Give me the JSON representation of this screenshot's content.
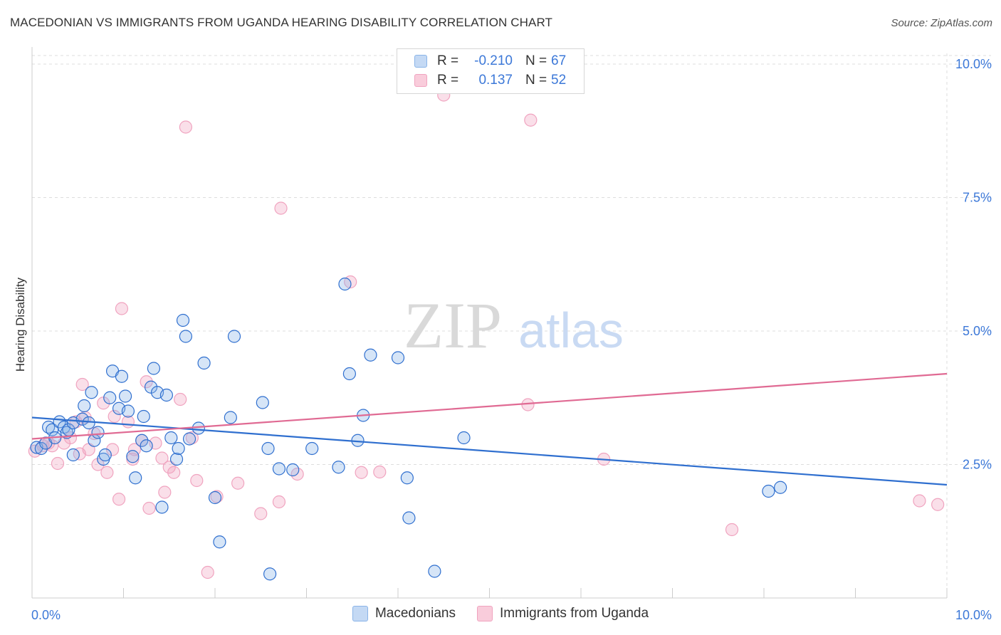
{
  "title": "MACEDONIAN VS IMMIGRANTS FROM UGANDA HEARING DISABILITY CORRELATION CHART",
  "source": "Source: ZipAtlas.com",
  "watermark": {
    "zip": "ZIP",
    "atlas": "atlas"
  },
  "legend": {
    "rows": [
      {
        "r_label": "R =",
        "r_value": "-0.210",
        "n_label": "N =",
        "n_value": "67"
      },
      {
        "r_label": "R =",
        "r_value": "0.137",
        "n_label": "N =",
        "n_value": "52"
      }
    ]
  },
  "bottom_legend": {
    "macedonians": "Macedonians",
    "uganda": "Immigrants from Uganda"
  },
  "chart_data": {
    "type": "scatter",
    "title": "MACEDONIAN VS IMMIGRANTS FROM UGANDA HEARING DISABILITY CORRELATION CHART",
    "xlabel": "",
    "ylabel": "Hearing Disability",
    "xlim": [
      0,
      10
    ],
    "ylim": [
      0,
      10.2
    ],
    "x_tick_labels": [
      "0.0%",
      "10.0%"
    ],
    "y_ticks": [
      2.5,
      5.0,
      7.5,
      10.0
    ],
    "y_tick_labels": [
      "2.5%",
      "5.0%",
      "7.5%",
      "10.0%"
    ],
    "grid": true,
    "legend_position": "top-center",
    "colors": {
      "macedonians": "#8ab4e8",
      "macedonians_line": "#2f6fcf",
      "uganda": "#f0a3bf",
      "uganda_line": "#e06a93",
      "accent_text": "#3c78d8"
    },
    "series": [
      {
        "name": "Macedonians",
        "r": -0.21,
        "n": 67,
        "trend": {
          "x": [
            0,
            10
          ],
          "y": [
            3.38,
            2.12
          ]
        },
        "points": [
          [
            0.05,
            2.82
          ],
          [
            0.1,
            2.8
          ],
          [
            0.15,
            2.9
          ],
          [
            0.18,
            3.2
          ],
          [
            0.22,
            3.15
          ],
          [
            0.25,
            3.0
          ],
          [
            0.3,
            3.3
          ],
          [
            0.35,
            3.2
          ],
          [
            0.38,
            3.1
          ],
          [
            0.4,
            3.15
          ],
          [
            0.45,
            3.28
          ],
          [
            0.45,
            2.68
          ],
          [
            0.55,
            3.35
          ],
          [
            0.57,
            3.6
          ],
          [
            0.62,
            3.28
          ],
          [
            0.65,
            3.85
          ],
          [
            0.68,
            2.95
          ],
          [
            0.72,
            3.1
          ],
          [
            0.78,
            2.6
          ],
          [
            0.8,
            2.68
          ],
          [
            0.85,
            3.75
          ],
          [
            0.88,
            4.25
          ],
          [
            0.95,
            3.55
          ],
          [
            0.98,
            4.15
          ],
          [
            1.02,
            3.78
          ],
          [
            1.05,
            3.5
          ],
          [
            1.1,
            2.65
          ],
          [
            1.13,
            2.25
          ],
          [
            1.2,
            2.95
          ],
          [
            1.22,
            3.4
          ],
          [
            1.25,
            2.85
          ],
          [
            1.3,
            3.95
          ],
          [
            1.33,
            4.3
          ],
          [
            1.37,
            3.85
          ],
          [
            1.42,
            1.7
          ],
          [
            1.47,
            3.8
          ],
          [
            1.52,
            3.0
          ],
          [
            1.58,
            2.6
          ],
          [
            1.6,
            2.8
          ],
          [
            1.65,
            5.2
          ],
          [
            1.68,
            4.9
          ],
          [
            1.72,
            2.98
          ],
          [
            1.82,
            3.18
          ],
          [
            1.88,
            4.4
          ],
          [
            2.0,
            1.88
          ],
          [
            2.05,
            1.05
          ],
          [
            2.17,
            3.38
          ],
          [
            2.21,
            4.9
          ],
          [
            2.52,
            3.66
          ],
          [
            2.58,
            2.8
          ],
          [
            2.6,
            0.45
          ],
          [
            2.7,
            2.42
          ],
          [
            2.85,
            2.4
          ],
          [
            3.06,
            2.8
          ],
          [
            3.35,
            2.45
          ],
          [
            3.42,
            5.88
          ],
          [
            3.47,
            4.2
          ],
          [
            3.62,
            3.42
          ],
          [
            3.56,
            2.95
          ],
          [
            3.7,
            4.55
          ],
          [
            4.0,
            4.5
          ],
          [
            4.1,
            2.25
          ],
          [
            4.12,
            1.5
          ],
          [
            4.4,
            0.5
          ],
          [
            4.72,
            3.0
          ],
          [
            8.05,
            2.0
          ],
          [
            8.18,
            2.07
          ]
        ]
      },
      {
        "name": "Immigrants from Uganda",
        "r": 0.137,
        "n": 52,
        "trend": {
          "x": [
            0,
            10
          ],
          "y": [
            2.98,
            4.2
          ]
        },
        "points": [
          [
            0.03,
            2.75
          ],
          [
            0.12,
            2.85
          ],
          [
            0.18,
            2.9
          ],
          [
            0.22,
            2.85
          ],
          [
            0.28,
            2.52
          ],
          [
            0.35,
            2.9
          ],
          [
            0.42,
            3.0
          ],
          [
            0.48,
            3.3
          ],
          [
            0.52,
            2.7
          ],
          [
            0.55,
            4.0
          ],
          [
            0.58,
            3.38
          ],
          [
            0.62,
            2.78
          ],
          [
            0.68,
            3.08
          ],
          [
            0.72,
            2.5
          ],
          [
            0.78,
            3.65
          ],
          [
            0.82,
            2.35
          ],
          [
            0.88,
            2.78
          ],
          [
            0.9,
            3.4
          ],
          [
            0.95,
            1.85
          ],
          [
            0.98,
            5.42
          ],
          [
            1.05,
            3.3
          ],
          [
            1.1,
            2.6
          ],
          [
            1.12,
            2.78
          ],
          [
            1.2,
            2.95
          ],
          [
            1.25,
            4.05
          ],
          [
            1.28,
            1.68
          ],
          [
            1.35,
            2.9
          ],
          [
            1.42,
            2.62
          ],
          [
            1.45,
            1.98
          ],
          [
            1.5,
            2.45
          ],
          [
            1.55,
            2.35
          ],
          [
            1.62,
            3.72
          ],
          [
            1.68,
            8.82
          ],
          [
            1.75,
            3.0
          ],
          [
            1.8,
            2.2
          ],
          [
            1.92,
            0.48
          ],
          [
            2.02,
            1.9
          ],
          [
            2.25,
            2.15
          ],
          [
            2.5,
            1.58
          ],
          [
            2.7,
            1.8
          ],
          [
            2.72,
            7.3
          ],
          [
            2.9,
            2.32
          ],
          [
            3.48,
            5.92
          ],
          [
            3.6,
            2.35
          ],
          [
            3.8,
            2.36
          ],
          [
            4.5,
            9.42
          ],
          [
            5.45,
            8.95
          ],
          [
            5.42,
            3.62
          ],
          [
            6.25,
            2.6
          ],
          [
            7.65,
            1.28
          ],
          [
            9.7,
            1.82
          ],
          [
            9.9,
            1.75
          ]
        ]
      }
    ]
  }
}
